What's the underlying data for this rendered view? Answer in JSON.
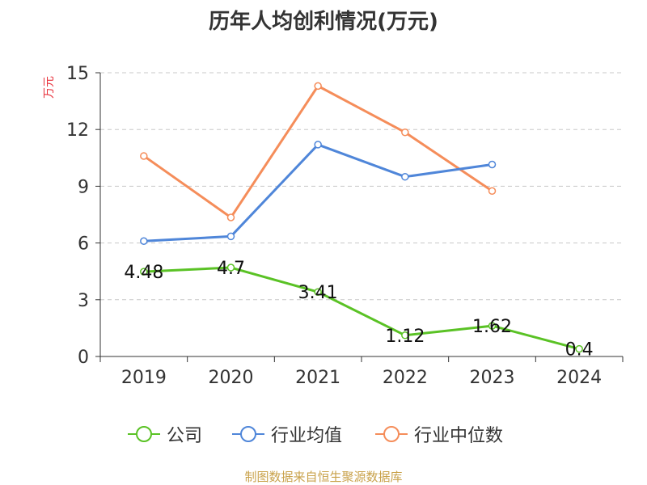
{
  "title": "历年人均创利情况(万元)",
  "source": "制图数据来自恒生聚源数据库",
  "chart_data": {
    "type": "line",
    "title": "历年人均创利情况(万元)",
    "ylabel": "万元",
    "x": [
      "2019",
      "2020",
      "2021",
      "2022",
      "2023",
      "2024"
    ],
    "ylim": [
      0,
      15
    ],
    "yticks": [
      0,
      3,
      6,
      9,
      12,
      15
    ],
    "grid": true,
    "legend_position": "bottom",
    "series": [
      {
        "name": "公司",
        "color": "#5ac225",
        "values": [
          4.48,
          4.7,
          3.41,
          1.12,
          1.62,
          0.4
        ],
        "labels": [
          "4.48",
          "4.7",
          "3.41",
          "1.12",
          "1.62",
          "0.4"
        ]
      },
      {
        "name": "行业均值",
        "color": "#4f86d9",
        "values": [
          6.1,
          6.35,
          11.2,
          9.5,
          10.15,
          null
        ]
      },
      {
        "name": "行业中位数",
        "color": "#f58d5a",
        "values": [
          10.6,
          7.35,
          14.3,
          11.85,
          8.75,
          null
        ]
      }
    ]
  }
}
